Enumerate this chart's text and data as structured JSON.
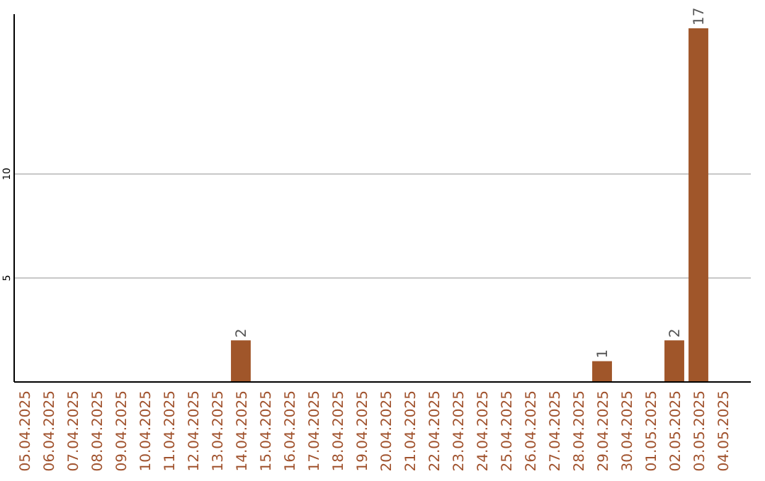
{
  "chart_data": {
    "type": "bar",
    "categories": [
      "05.04.2025",
      "06.04.2025",
      "07.04.2025",
      "08.04.2025",
      "09.04.2025",
      "10.04.2025",
      "11.04.2025",
      "12.04.2025",
      "13.04.2025",
      "14.04.2025",
      "15.04.2025",
      "16.04.2025",
      "17.04.2025",
      "18.04.2025",
      "19.04.2025",
      "20.04.2025",
      "21.04.2025",
      "22.04.2025",
      "23.04.2025",
      "24.04.2025",
      "25.04.2025",
      "26.04.2025",
      "27.04.2025",
      "28.04.2025",
      "29.04.2025",
      "30.04.2025",
      "01.05.2025",
      "02.05.2025",
      "03.05.2025",
      "04.05.2025"
    ],
    "values": [
      0,
      0,
      0,
      0,
      0,
      0,
      0,
      0,
      0,
      2,
      0,
      0,
      0,
      0,
      0,
      0,
      0,
      0,
      0,
      0,
      0,
      0,
      0,
      0,
      1,
      0,
      0,
      2,
      17,
      0
    ],
    "value_labels": [
      null,
      null,
      null,
      null,
      null,
      null,
      null,
      null,
      null,
      "2",
      null,
      null,
      null,
      null,
      null,
      null,
      null,
      null,
      null,
      null,
      null,
      null,
      null,
      null,
      "1",
      null,
      null,
      "2",
      "17",
      null
    ],
    "color": "#a0562a",
    "ylim": [
      0,
      17
    ],
    "yticks": [
      5,
      10
    ],
    "grid": "y"
  }
}
